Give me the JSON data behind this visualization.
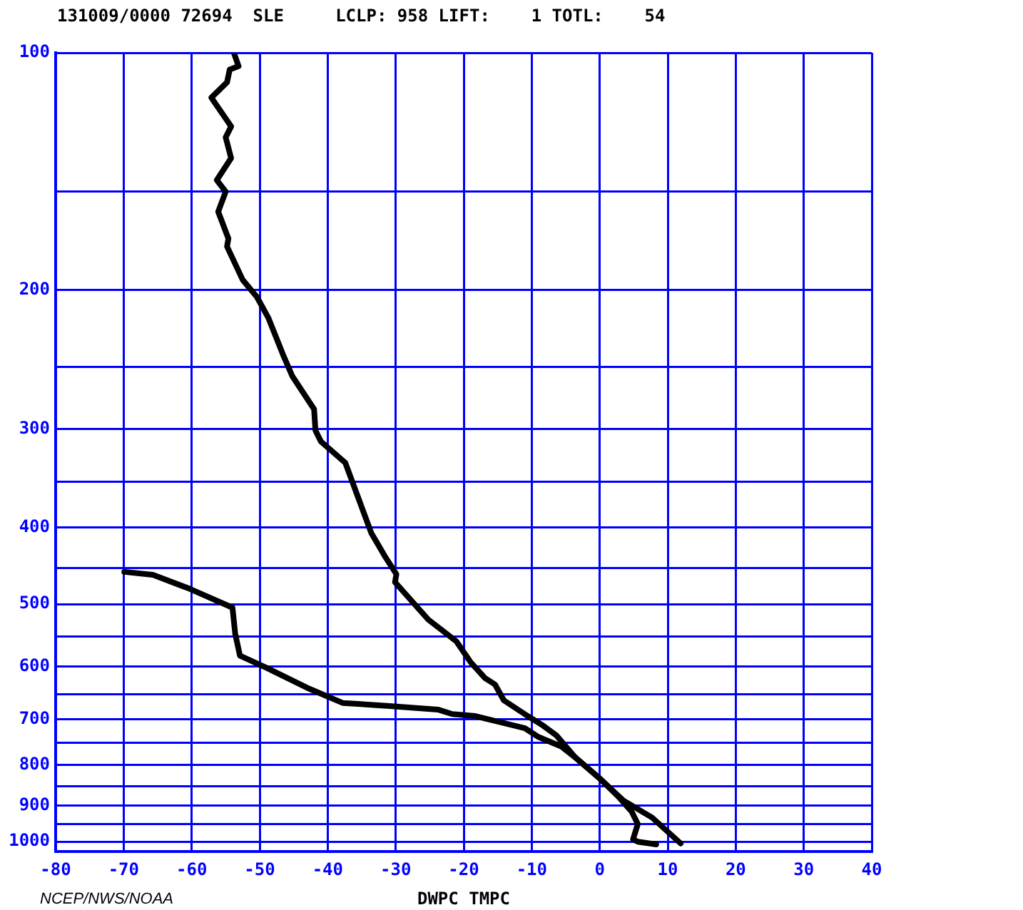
{
  "chart_data": {
    "type": "line",
    "title": "131009/0000 72694  SLE     LCLP: 958 LIFT:    1 TOTL:    54",
    "xlabel": "DWPC TMPC",
    "annotations": [
      "NCEP/NWS/NOAA"
    ],
    "xlim": [
      -80,
      40
    ],
    "xticks": [
      -80,
      -70,
      -60,
      -50,
      -40,
      -30,
      -20,
      -10,
      0,
      10,
      20,
      30,
      40
    ],
    "ylim": [
      1030,
      100
    ],
    "yticks": [
      100,
      {
        "value": 150,
        "label": null
      },
      200,
      {
        "value": 250,
        "label": null
      },
      300,
      {
        "value": 350,
        "label": null
      },
      400,
      {
        "value": 450,
        "label": null
      },
      500,
      {
        "value": 550,
        "label": null
      },
      600,
      {
        "value": 650,
        "label": null
      },
      700,
      {
        "value": 750,
        "label": null
      },
      800,
      {
        "value": 850,
        "label": null
      },
      900,
      {
        "value": 950,
        "label": null
      },
      1000
    ],
    "log": "y",
    "grid": true,
    "legend": false,
    "marker": "none",
    "line_style": "solid",
    "series": [
      {
        "color": "#000000",
        "x": [
          -53.8,
          -53.1,
          -54.4,
          -54.8,
          -57.1,
          -54.2,
          -55.0,
          -54.2,
          -56.3,
          -55.0,
          -56.1,
          -54.6,
          -54.8,
          -52.5,
          -50.4,
          -48.7,
          -46.6,
          -45.2,
          -42.0,
          -41.8,
          -41.0,
          -37.4,
          -33.6,
          -31.5,
          -29.9,
          -30.1,
          -25.2,
          -21.1,
          -19.0,
          -16.9,
          -15.4,
          -14.1,
          -10.6,
          -8.5,
          -6.4,
          -3.6,
          -0.1,
          3.5,
          7.7,
          11.9
        ],
        "values": [
          100,
          104,
          105,
          109,
          114,
          124,
          128,
          136,
          145,
          150,
          159,
          172,
          176,
          194,
          204,
          217,
          241,
          257,
          283,
          301,
          311,
          331,
          406,
          436,
          458,
          469,
          523,
          557,
          592,
          620,
          632,
          662,
          693,
          711,
          733,
          782,
          830,
          887,
          932,
          1005
        ]
      },
      {
        "color": "#000000",
        "x": [
          -69.9,
          -65.7,
          -60.3,
          -54.0,
          -53.6,
          -52.9,
          -49.0,
          -42.7,
          -37.8,
          -30.9,
          -23.8,
          -21.7,
          -18.3,
          -11.0,
          -9.1,
          -5.7,
          -3.6,
          -0.1,
          2.7,
          4.7,
          5.6,
          4.9,
          5.6,
          8.3
        ],
        "values": [
          455,
          459,
          478,
          505,
          545,
          581,
          602,
          640,
          667,
          673,
          680,
          689,
          693,
          718,
          736,
          757,
          782,
          830,
          876,
          916,
          950,
          993,
          1000,
          1008
        ]
      }
    ]
  }
}
